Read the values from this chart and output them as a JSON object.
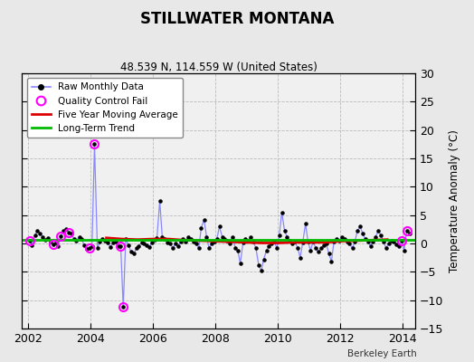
{
  "title": "STILLWATER MONTANA",
  "subtitle": "48.539 N, 114.559 W (United States)",
  "ylabel": "Temperature Anomaly (°C)",
  "credit": "Berkeley Earth",
  "xlim": [
    2001.8,
    2014.4
  ],
  "ylim": [
    -15,
    30
  ],
  "yticks": [
    -15,
    -10,
    -5,
    0,
    5,
    10,
    15,
    20,
    25,
    30
  ],
  "xticks": [
    2002,
    2004,
    2006,
    2008,
    2010,
    2012,
    2014
  ],
  "bg_color": "#e8e8e8",
  "plot_bg": "#f0f0f0",
  "raw_color": "#8888ff",
  "dot_color": "#000000",
  "ma_color": "#dd0000",
  "trend_color": "#00bb00",
  "qc_color": "#ff00ff",
  "raw_data_t": [
    2002.04,
    2002.12,
    2002.21,
    2002.29,
    2002.38,
    2002.46,
    2002.54,
    2002.63,
    2002.71,
    2002.79,
    2002.88,
    2002.96,
    2003.04,
    2003.12,
    2003.21,
    2003.29,
    2003.38,
    2003.46,
    2003.54,
    2003.63,
    2003.71,
    2003.79,
    2003.88,
    2003.96,
    2004.04,
    2004.12,
    2004.21,
    2004.29,
    2004.38,
    2004.46,
    2004.54,
    2004.63,
    2004.71,
    2004.79,
    2004.88,
    2004.96,
    2005.04,
    2005.12,
    2005.21,
    2005.29,
    2005.38,
    2005.46,
    2005.54,
    2005.63,
    2005.71,
    2005.79,
    2005.88,
    2005.96,
    2006.04,
    2006.12,
    2006.21,
    2006.29,
    2006.38,
    2006.46,
    2006.54,
    2006.63,
    2006.71,
    2006.79,
    2006.88,
    2006.96,
    2007.04,
    2007.12,
    2007.21,
    2007.29,
    2007.38,
    2007.46,
    2007.54,
    2007.63,
    2007.71,
    2007.79,
    2007.88,
    2007.96,
    2008.04,
    2008.12,
    2008.21,
    2008.29,
    2008.38,
    2008.46,
    2008.54,
    2008.63,
    2008.71,
    2008.79,
    2008.88,
    2008.96,
    2009.04,
    2009.12,
    2009.21,
    2009.29,
    2009.38,
    2009.46,
    2009.54,
    2009.63,
    2009.71,
    2009.79,
    2009.88,
    2009.96,
    2010.04,
    2010.12,
    2010.21,
    2010.29,
    2010.38,
    2010.46,
    2010.54,
    2010.63,
    2010.71,
    2010.79,
    2010.88,
    2010.96,
    2011.04,
    2011.12,
    2011.21,
    2011.29,
    2011.38,
    2011.46,
    2011.54,
    2011.63,
    2011.71,
    2011.79,
    2011.88,
    2011.96,
    2012.04,
    2012.12,
    2012.21,
    2012.29,
    2012.38,
    2012.46,
    2012.54,
    2012.63,
    2012.71,
    2012.79,
    2012.88,
    2012.96,
    2013.04,
    2013.12,
    2013.21,
    2013.29,
    2013.38,
    2013.46,
    2013.54,
    2013.63,
    2013.71,
    2013.79,
    2013.88,
    2013.96,
    2014.04,
    2014.12,
    2014.21
  ],
  "raw_data_v": [
    0.5,
    -0.3,
    1.5,
    2.2,
    1.8,
    1.2,
    0.6,
    1.0,
    0.3,
    -0.2,
    0.2,
    -0.4,
    1.3,
    2.2,
    2.5,
    2.0,
    1.8,
    0.8,
    0.5,
    1.2,
    0.8,
    -0.3,
    -1.0,
    -0.8,
    -0.5,
    17.5,
    -0.8,
    0.3,
    0.8,
    0.5,
    0.2,
    -0.6,
    0.1,
    0.3,
    -0.4,
    -0.5,
    -11.2,
    0.8,
    -0.3,
    -1.5,
    -1.8,
    -0.8,
    -0.5,
    0.2,
    0.0,
    -0.3,
    -0.6,
    0.2,
    0.6,
    1.0,
    7.5,
    1.2,
    0.8,
    0.2,
    0.0,
    -0.8,
    0.0,
    -0.5,
    0.3,
    0.8,
    0.3,
    1.2,
    0.8,
    0.3,
    0.0,
    -0.8,
    2.8,
    4.2,
    1.2,
    -0.8,
    0.0,
    0.3,
    0.8,
    3.0,
    1.2,
    0.8,
    0.5,
    0.0,
    1.2,
    -0.8,
    -1.2,
    -3.5,
    0.2,
    0.8,
    0.5,
    1.2,
    0.3,
    -0.8,
    -3.8,
    -4.8,
    -2.8,
    -1.2,
    -0.5,
    0.0,
    0.3,
    -0.8,
    1.5,
    5.5,
    2.2,
    1.2,
    0.5,
    0.0,
    0.3,
    -0.8,
    -2.5,
    0.2,
    3.5,
    0.3,
    -1.2,
    0.3,
    -0.8,
    -1.5,
    -0.8,
    -0.3,
    0.0,
    -1.8,
    -3.2,
    0.3,
    0.8,
    0.5,
    1.2,
    0.8,
    0.3,
    0.0,
    -0.8,
    0.3,
    2.2,
    3.0,
    1.8,
    0.8,
    0.3,
    -0.5,
    0.3,
    1.2,
    2.2,
    1.5,
    0.3,
    -0.8,
    0.0,
    0.5,
    0.3,
    -0.2,
    -0.5,
    0.5,
    -1.2,
    2.2,
    1.8
  ],
  "qc_points": [
    [
      2002.04,
      0.5
    ],
    [
      2002.79,
      -0.2
    ],
    [
      2003.04,
      1.3
    ],
    [
      2003.29,
      2.0
    ],
    [
      2003.96,
      -0.8
    ],
    [
      2004.12,
      17.5
    ],
    [
      2004.96,
      -0.5
    ],
    [
      2005.04,
      -11.2
    ],
    [
      2013.96,
      0.5
    ],
    [
      2014.12,
      2.2
    ]
  ],
  "ma_t": [
    2004.5,
    2005.0,
    2005.5,
    2006.0,
    2006.5,
    2007.0,
    2007.5,
    2008.0,
    2008.5,
    2009.0,
    2009.5,
    2010.0,
    2010.5,
    2011.0,
    2011.5,
    2012.0,
    2012.5,
    2013.0,
    2013.5
  ],
  "ma_v": [
    1.0,
    0.8,
    0.7,
    0.8,
    0.8,
    0.6,
    0.5,
    0.4,
    0.3,
    0.2,
    0.1,
    0.1,
    0.2,
    0.2,
    0.2,
    0.4,
    0.5,
    0.6,
    0.7
  ],
  "trend_y": 0.7
}
